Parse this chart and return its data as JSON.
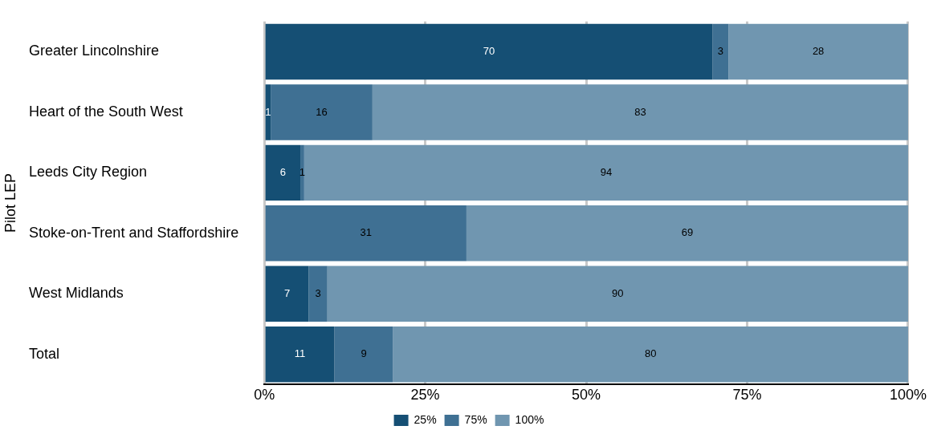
{
  "chart_data": {
    "type": "bar",
    "orientation": "horizontal",
    "stacked": true,
    "ylabel": "Pilot LEP",
    "categories": [
      "Greater Lincolnshire",
      "Heart of the South West",
      "Leeds City Region",
      "Stoke-on-Trent and Staffordshire",
      "West Midlands",
      "Total"
    ],
    "series": [
      {
        "name": "25%",
        "color": "#154f74",
        "values": [
          69.6,
          1.0,
          5.6,
          0,
          6.9,
          10.9
        ],
        "value_labels": [
          "70",
          "1",
          "6",
          null,
          "7",
          "11"
        ]
      },
      {
        "name": "75%",
        "color": "#3f7093",
        "values": [
          2.5,
          15.8,
          0.6,
          31.4,
          2.9,
          9.1
        ],
        "value_labels": [
          "3",
          "16",
          "1",
          "31",
          "3",
          "9"
        ]
      },
      {
        "name": "100%",
        "color": "#7096b0",
        "values": [
          27.9,
          83.2,
          93.8,
          68.6,
          90.2,
          80.0
        ],
        "value_labels": [
          "28",
          "83",
          "94",
          "69",
          "90",
          "80"
        ]
      }
    ],
    "xlim": [
      0,
      100
    ],
    "xticks": [
      {
        "value": 0,
        "label": "0%"
      },
      {
        "value": 25,
        "label": "25%"
      },
      {
        "value": 50,
        "label": "50%"
      },
      {
        "value": 75,
        "label": "75%"
      },
      {
        "value": 100,
        "label": "100%"
      }
    ],
    "grid": "x",
    "legend": "bottom"
  }
}
